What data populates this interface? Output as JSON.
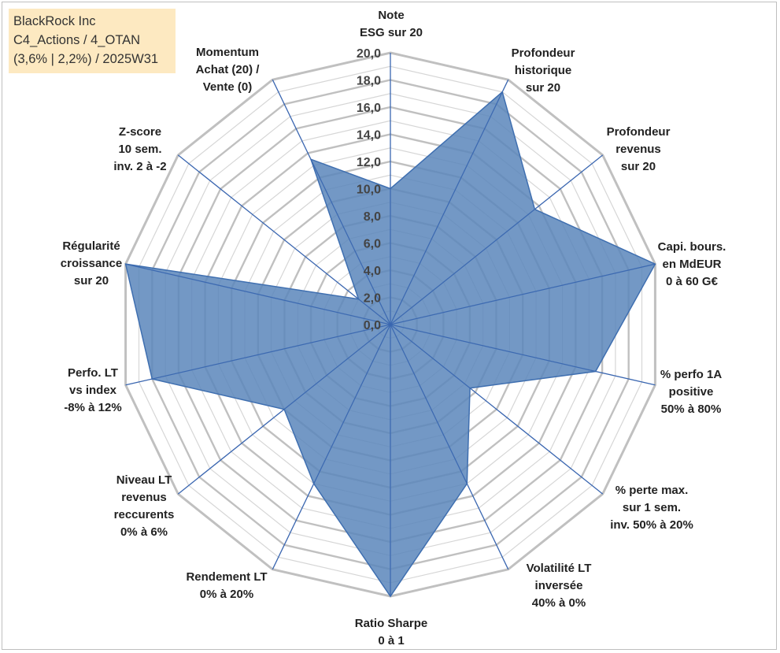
{
  "info": {
    "line1": "BlackRock Inc",
    "line2": "C4_Actions / 4_OTAN",
    "line3": "(3,6% | 2,2%) / 2025W31"
  },
  "colors": {
    "fill": "#5b86bb",
    "outline": "#3f6fb0",
    "spoke": "#3a66b0",
    "grid_major": "#c0c0c0",
    "grid_minor": "#d6d6d6",
    "info_bg": "#fde9c1"
  },
  "chart_data": {
    "type": "radar",
    "rmin": 0,
    "rmax": 20,
    "ticks": [
      "0,0",
      "2,0",
      "4,0",
      "6,0",
      "8,0",
      "10,0",
      "12,0",
      "14,0",
      "16,0",
      "18,0",
      "20,0"
    ],
    "categories": [
      [
        "Note",
        "ESG sur 20"
      ],
      [
        "Profondeur",
        "historique",
        "sur 20"
      ],
      [
        "Profondeur",
        "revenus",
        "sur 20"
      ],
      [
        "Capi. bours.",
        "en MdEUR",
        "0 à 60 G€"
      ],
      [
        "% perfo 1A",
        "positive",
        "50% à 80%"
      ],
      [
        "% perte max.",
        "sur 1 sem.",
        "inv. 50% à 20%"
      ],
      [
        "Volatilité LT",
        "inversée",
        "40% à 0%"
      ],
      [
        "Ratio Sharpe",
        "0 à 1"
      ],
      [
        "Rendement LT",
        "0% à 20%"
      ],
      [
        "Niveau LT",
        "revenus",
        "reccurents",
        "0% à 6%"
      ],
      [
        "Perfo. LT",
        "vs index",
        "-8% à 12%"
      ],
      [
        "Régularité",
        "croissance",
        "sur 20"
      ],
      [
        "Z-score",
        "10 sem.",
        "inv. 2 à -2"
      ],
      [
        "Momentum",
        "Achat (20) /",
        "Vente (0)"
      ]
    ],
    "values": [
      10.0,
      19.0,
      13.6,
      20.0,
      15.5,
      7.5,
      13.0,
      20.0,
      13.0,
      10.0,
      18.0,
      20.0,
      3.0,
      13.5
    ],
    "grid": true,
    "legend": "none"
  }
}
